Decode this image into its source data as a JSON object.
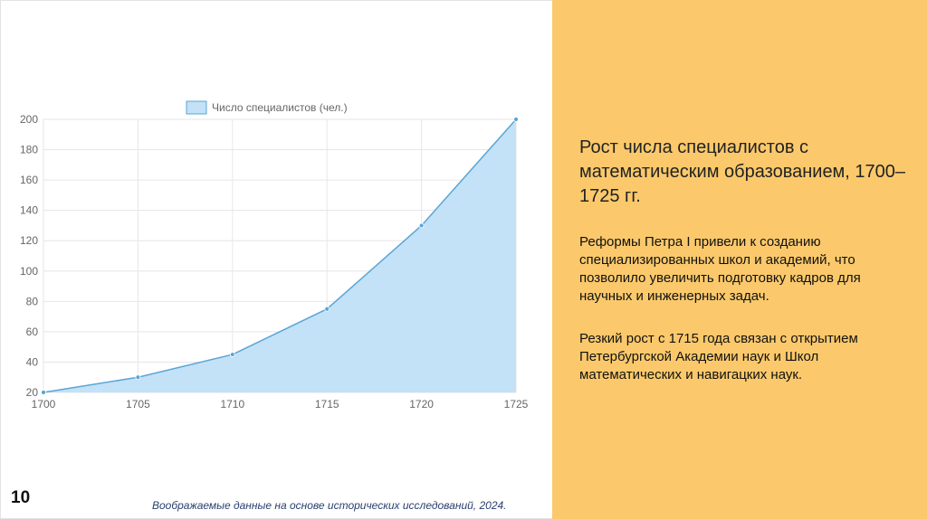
{
  "slide": {
    "page_number": "10",
    "source_note": "Воображаемые данные на основе исторических исследований, 2024."
  },
  "panel": {
    "title": "Рост числа специалистов с математическим образованием, 1700–1725 гг.",
    "paragraph1": "Реформы Петра I привели к созданию специализированных школ и академий, что позволило увеличить подготовку кадров для научных и инженерных задач.",
    "paragraph2": "Резкий рост с 1715 года связан с открытием Петербургской Академии наук и Школ математических и навигацких наук.",
    "background": "#fbc96b"
  },
  "chart_data": {
    "type": "area",
    "x": [
      1700,
      1705,
      1710,
      1715,
      1720,
      1725
    ],
    "series": [
      {
        "name": "Число специалистов (чел.)",
        "values": [
          20,
          30,
          45,
          75,
          130,
          200
        ]
      }
    ],
    "ylim": [
      20,
      200
    ],
    "yticks": [
      20,
      40,
      60,
      80,
      100,
      120,
      140,
      160,
      180,
      200
    ],
    "legend": "top-center",
    "grid": true,
    "line_color": "#5aa6d6",
    "fill_color": "#c3e1f7"
  }
}
